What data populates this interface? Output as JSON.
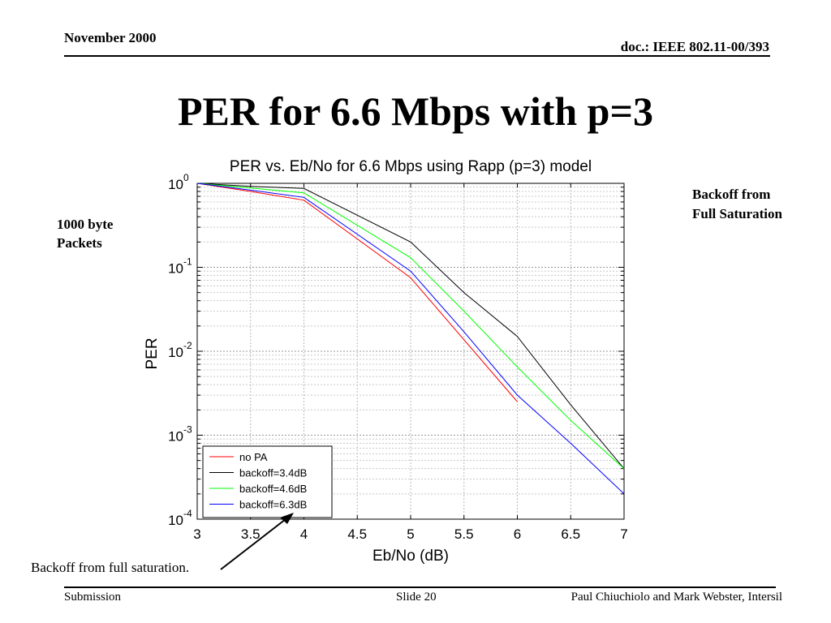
{
  "header": {
    "date": "November 2000",
    "doc": "doc.: IEEE 802.11-00/393"
  },
  "slide": {
    "title": "PER for 6.6 Mbps with p=3",
    "note_left": "1000 byte Packets",
    "note_right": "Backoff from Full Saturation",
    "annotation": "Backoff from full saturation."
  },
  "footer": {
    "left": "Submission",
    "center": "Slide 20",
    "right": "Paul Chiuchiolo and Mark Webster, Intersil"
  },
  "chart_data": {
    "type": "line",
    "title": "PER vs. Eb/No for 6.6 Mbps using Rapp (p=3) model",
    "xlabel": "Eb/No (dB)",
    "ylabel": "PER",
    "xlim": [
      3,
      7
    ],
    "ylim": [
      0.0001,
      1
    ],
    "yscale": "log",
    "grid": true,
    "legend_position": "bottom-left",
    "xticks": [
      "3",
      "3.5",
      "4",
      "4.5",
      "5",
      "5.5",
      "6",
      "6.5",
      "7"
    ],
    "yticks": [
      {
        "base": "10",
        "exp": "0"
      },
      {
        "base": "10",
        "exp": "-1"
      },
      {
        "base": "10",
        "exp": "-2"
      },
      {
        "base": "10",
        "exp": "-3"
      },
      {
        "base": "10",
        "exp": "-4"
      }
    ],
    "series": [
      {
        "name": "no PA",
        "color": "#ff0000",
        "x": [
          3,
          3.5,
          4,
          5,
          6
        ],
        "y": [
          1.0,
          0.8,
          0.63,
          0.075,
          0.0025
        ]
      },
      {
        "name": "backoff=3.4dB",
        "color": "#000000",
        "x": [
          3,
          3.5,
          4,
          5,
          5.5,
          6,
          6.5,
          7
        ],
        "y": [
          1.0,
          0.92,
          0.87,
          0.2,
          0.05,
          0.015,
          0.0023,
          0.0004
        ]
      },
      {
        "name": "backoff=4.6dB",
        "color": "#00ff00",
        "x": [
          3,
          3.5,
          4,
          5,
          5.5,
          6,
          6.5,
          7
        ],
        "y": [
          1.0,
          0.88,
          0.77,
          0.13,
          0.03,
          0.0065,
          0.0015,
          0.0004
        ]
      },
      {
        "name": "backoff=6.3dB",
        "color": "#0000ff",
        "x": [
          3,
          3.5,
          4,
          5,
          5.5,
          6,
          6.5,
          7
        ],
        "y": [
          1.0,
          0.83,
          0.68,
          0.09,
          0.017,
          0.003,
          0.0008,
          0.0002
        ]
      }
    ]
  }
}
